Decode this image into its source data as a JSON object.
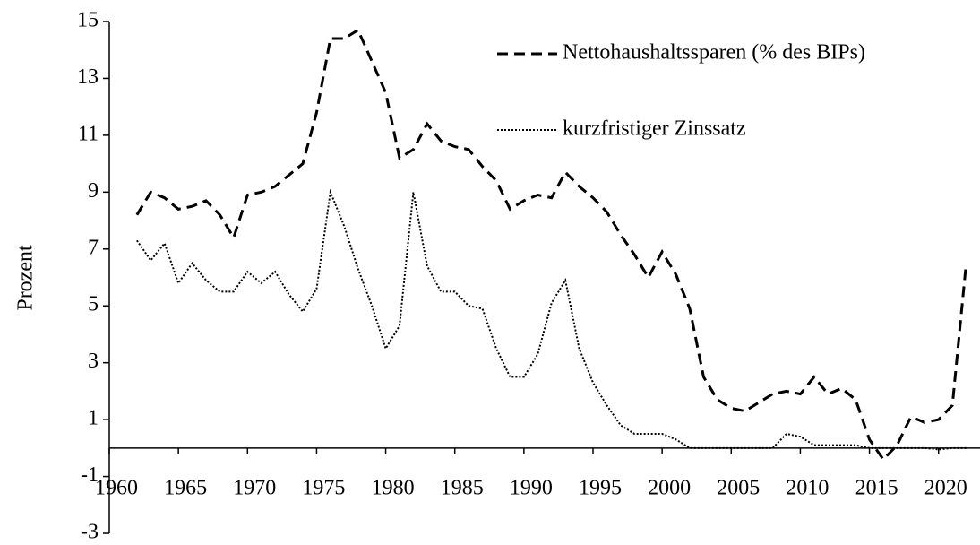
{
  "chart_data": {
    "type": "line",
    "y_label": "Prozent",
    "x": [
      1962,
      1963,
      1964,
      1965,
      1966,
      1967,
      1968,
      1969,
      1970,
      1971,
      1972,
      1973,
      1974,
      1975,
      1976,
      1977,
      1978,
      1979,
      1980,
      1981,
      1982,
      1983,
      1984,
      1985,
      1986,
      1987,
      1988,
      1989,
      1990,
      1991,
      1992,
      1993,
      1994,
      1995,
      1996,
      1997,
      1998,
      1999,
      2000,
      2001,
      2002,
      2003,
      2004,
      2005,
      2006,
      2007,
      2008,
      2009,
      2010,
      2011,
      2012,
      2013,
      2014,
      2015,
      2016,
      2017,
      2018,
      2019,
      2020,
      2021,
      2022
    ],
    "series": [
      {
        "name": "Nettohaushaltssparen (% des BIPs)",
        "color": "#000000",
        "style": "dashed",
        "values": [
          8.2,
          9.0,
          8.8,
          8.4,
          8.5,
          8.7,
          8.2,
          7.4,
          8.9,
          9.0,
          9.2,
          9.6,
          10.0,
          11.8,
          14.4,
          14.4,
          14.7,
          13.6,
          12.5,
          10.2,
          10.5,
          11.4,
          10.8,
          10.6,
          10.5,
          9.9,
          9.4,
          8.4,
          8.7,
          8.9,
          8.8,
          9.7,
          9.2,
          8.8,
          8.3,
          7.5,
          6.8,
          6.0,
          6.9,
          6.1,
          4.9,
          2.5,
          1.7,
          1.4,
          1.3,
          1.6,
          1.9,
          2.0,
          1.9,
          2.5,
          1.9,
          2.1,
          1.7,
          0.3,
          -0.4,
          0.1,
          1.1,
          0.9,
          1.0,
          1.5,
          6.5
        ]
      },
      {
        "name": "kurzfristiger Zinssatz",
        "color": "#000000",
        "style": "dotted",
        "values": [
          7.3,
          6.6,
          7.2,
          5.8,
          6.5,
          5.9,
          5.5,
          5.5,
          6.2,
          5.8,
          6.2,
          5.4,
          4.8,
          5.6,
          9.0,
          7.8,
          6.3,
          5.0,
          3.5,
          4.3,
          9.0,
          6.4,
          5.5,
          5.5,
          5.0,
          4.9,
          3.5,
          2.5,
          2.5,
          3.3,
          5.1,
          5.9,
          3.5,
          2.3,
          1.5,
          0.8,
          0.5,
          0.5,
          0.5,
          0.3,
          0.0,
          0.0,
          0.0,
          0.0,
          0.0,
          0.0,
          0.0,
          0.5,
          0.4,
          0.1,
          0.1,
          0.1,
          0.1,
          0.0,
          0.0,
          0.0,
          0.0,
          0.0,
          -0.05,
          0.0,
          0.0
        ]
      }
    ],
    "xlim": [
      1960,
      2023
    ],
    "xticks": [
      1960,
      1965,
      1970,
      1975,
      1980,
      1985,
      1990,
      1995,
      2000,
      2005,
      2010,
      2015,
      2020
    ],
    "ylim": [
      -3,
      15
    ],
    "yticks": [
      -3,
      -1,
      1,
      3,
      5,
      7,
      9,
      11,
      13,
      15
    ],
    "legend": "top-right"
  }
}
